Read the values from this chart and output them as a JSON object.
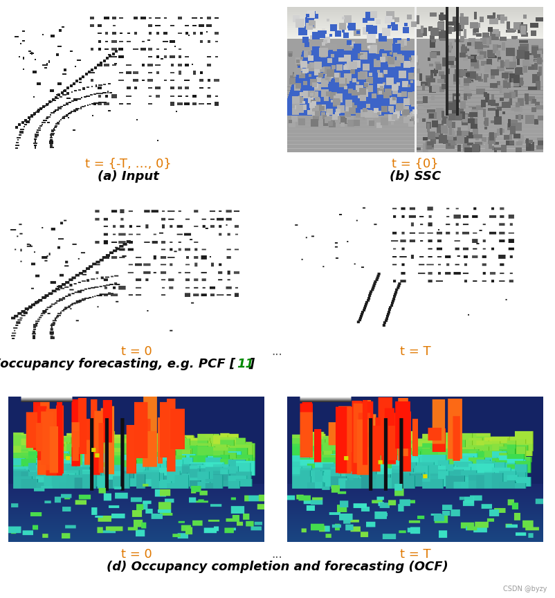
{
  "bg_color": "#ffffff",
  "panel_a_label": "t = {-T, …, 0}",
  "panel_a_sublabel": "(a) Input",
  "panel_b_label": "t = {0}",
  "panel_b_sublabel": "(b) SSC",
  "panel_c_label_left": "t = 0",
  "panel_c_label_right": "t = T",
  "panel_c_sublabel_part1": "(c) Point/occupancy forecasting, e.g. PCF [",
  "panel_c_sublabel_part2": "11",
  "panel_c_sublabel_part3": "]",
  "panel_d_label_left": "t = 0",
  "panel_d_label_right": "t = T",
  "panel_d_sublabel": "(d) Occupancy completion and forecasting (OCF)",
  "dots": "...",
  "watermark": "CSDN @byzy",
  "label_color": "#e07800",
  "caption_color": "#000000",
  "ref_color": "#008800",
  "dashed_color": "#888888",
  "font_size_label": 13,
  "font_size_sublabel": 13,
  "font_size_caption": 13
}
